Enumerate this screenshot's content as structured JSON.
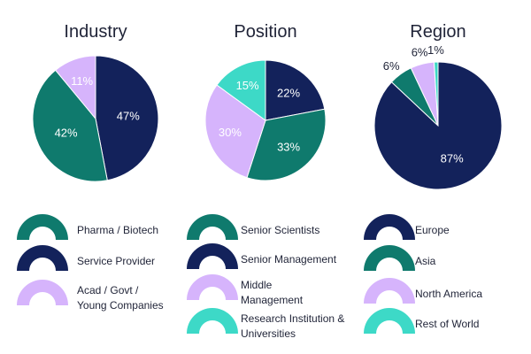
{
  "colors": {
    "navy": "#13225b",
    "teal": "#0f7a6d",
    "lavender": "#d6b4fc",
    "turquoise": "#3dd9c7",
    "text": "#1f2337"
  },
  "chart_data": [
    {
      "type": "pie",
      "title": "Industry",
      "slices": [
        {
          "label": "Service Provider",
          "value": 47,
          "text": "47%",
          "color": "#13225b",
          "text_color": "#ffffff"
        },
        {
          "label": "Pharma / Biotech",
          "value": 42,
          "text": "42%",
          "color": "#0f7a6d",
          "text_color": "#ffffff"
        },
        {
          "label": "Acad / Govt / Young Companies",
          "value": 11,
          "text": "11%",
          "color": "#d6b4fc",
          "text_color": "#ffffff"
        }
      ],
      "legend": [
        {
          "label": "Pharma / Biotech",
          "color": "#0f7a6d"
        },
        {
          "label": "Service Provider",
          "color": "#13225b"
        },
        {
          "label": "Acad / Govt / Young Companies",
          "lines": [
            "Acad / Govt /",
            "Young Companies"
          ],
          "color": "#d6b4fc"
        }
      ]
    },
    {
      "type": "pie",
      "title": "Position",
      "slices": [
        {
          "label": "Senior Management",
          "value": 22,
          "text": "22%",
          "color": "#13225b",
          "text_color": "#ffffff"
        },
        {
          "label": "Senior Scientists",
          "value": 33,
          "text": "33%",
          "color": "#0f7a6d",
          "text_color": "#ffffff"
        },
        {
          "label": "Middle Management",
          "value": 30,
          "text": "30%",
          "color": "#d6b4fc",
          "text_color": "#ffffff"
        },
        {
          "label": "Research Institution & Universities",
          "value": 15,
          "text": "15%",
          "color": "#3dd9c7",
          "text_color": "#ffffff"
        }
      ],
      "legend": [
        {
          "label": "Senior Scientists",
          "color": "#0f7a6d"
        },
        {
          "label": "Senior Management",
          "color": "#13225b"
        },
        {
          "label": "Middle Management",
          "lines": [
            "Middle",
            "Management"
          ],
          "color": "#d6b4fc"
        },
        {
          "label": "Research Institution & Universities",
          "lines": [
            "Research Institution &",
            "Universities"
          ],
          "color": "#3dd9c7"
        }
      ]
    },
    {
      "type": "pie",
      "title": "Region",
      "slices": [
        {
          "label": "Europe",
          "value": 87,
          "text": "87%",
          "color": "#13225b",
          "text_color": "#ffffff"
        },
        {
          "label": "Asia",
          "value": 6,
          "text": "6%",
          "color": "#0f7a6d",
          "text_color": "#1f2337"
        },
        {
          "label": "North America",
          "value": 6,
          "text": "6%",
          "color": "#d6b4fc",
          "text_color": "#1f2337"
        },
        {
          "label": "Rest of World",
          "value": 1,
          "text": "1%",
          "color": "#3dd9c7",
          "text_color": "#1f2337"
        }
      ],
      "legend": [
        {
          "label": "Europe",
          "color": "#13225b"
        },
        {
          "label": "Asia",
          "color": "#0f7a6d"
        },
        {
          "label": "North America",
          "color": "#d6b4fc"
        },
        {
          "label": "Rest of World",
          "color": "#3dd9c7"
        }
      ]
    }
  ]
}
